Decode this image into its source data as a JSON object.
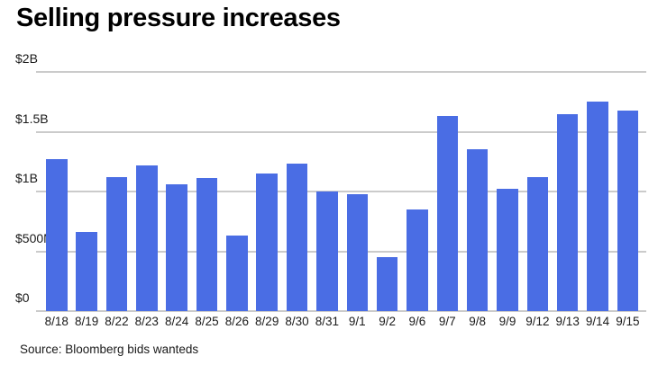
{
  "title": "Selling pressure increases",
  "source": "Source: Bloomberg bids wanteds",
  "colors": {
    "bar": "#4a6de4",
    "grid": "#cbcbcb",
    "text": "#1a1a1a",
    "background": "#ffffff"
  },
  "chart_data": {
    "type": "bar",
    "title": "Selling pressure increases",
    "xlabel": "",
    "ylabel": "",
    "unit": "USD",
    "grid": "horizontal",
    "legend": "none",
    "categories": [
      "8/18",
      "8/19",
      "8/22",
      "8/23",
      "8/24",
      "8/25",
      "8/26",
      "8/29",
      "8/30",
      "8/31",
      "9/1",
      "9/2",
      "9/6",
      "9/7",
      "9/8",
      "9/9",
      "9/12",
      "9/13",
      "9/14",
      "9/15"
    ],
    "values_millions": [
      1270,
      660,
      1120,
      1220,
      1060,
      1110,
      630,
      1150,
      1230,
      1000,
      980,
      450,
      850,
      1630,
      1350,
      1020,
      1120,
      1650,
      1750,
      1680
    ],
    "ylim_millions": [
      0,
      2000
    ],
    "yticks": [
      {
        "label": "$2B",
        "value": 2000
      },
      {
        "label": "$1.5B",
        "value": 1500
      },
      {
        "label": "$1B",
        "value": 1000
      },
      {
        "label": "$500M",
        "value": 500
      },
      {
        "label": "$0",
        "value": 0
      }
    ],
    "source": "Source: Bloomberg bids wanteds"
  }
}
